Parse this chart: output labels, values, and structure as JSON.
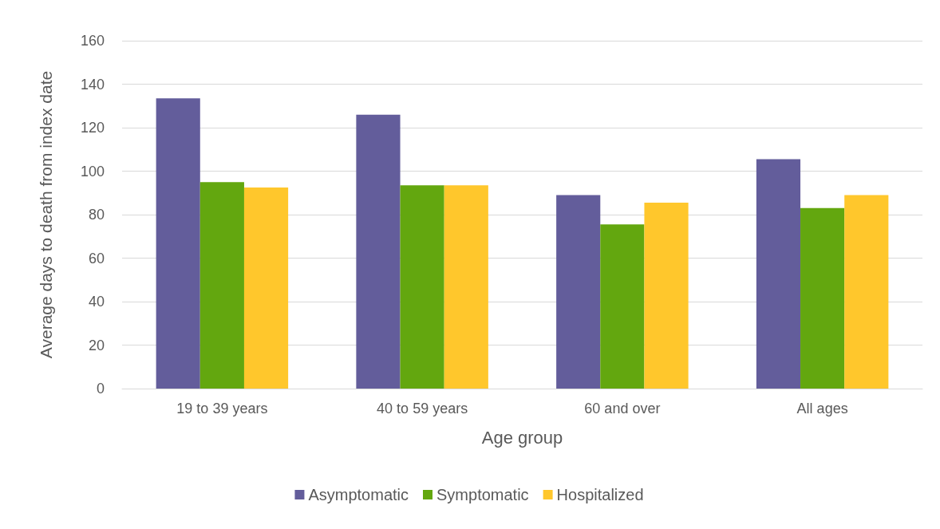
{
  "chart_data": {
    "type": "bar",
    "xlabel": "Age group",
    "ylabel": "Average days to death from index date",
    "categories": [
      "19 to 39 years",
      "40 to 59 years",
      "60 and over",
      "All ages"
    ],
    "series": [
      {
        "name": "Asymptomatic",
        "color": "#635d9b",
        "values": [
          133.5,
          126,
          89,
          105.5
        ]
      },
      {
        "name": "Symptomatic",
        "color": "#63a70f",
        "values": [
          95,
          93.5,
          75.5,
          83
        ]
      },
      {
        "name": "Hospitalized",
        "color": "#ffc72c",
        "values": [
          92.5,
          93.5,
          85.5,
          89
        ]
      }
    ],
    "ylim": [
      0,
      160
    ],
    "yticks": [
      0,
      20,
      40,
      60,
      80,
      100,
      120,
      140,
      160
    ],
    "grid": "y",
    "legend": "bottom"
  }
}
